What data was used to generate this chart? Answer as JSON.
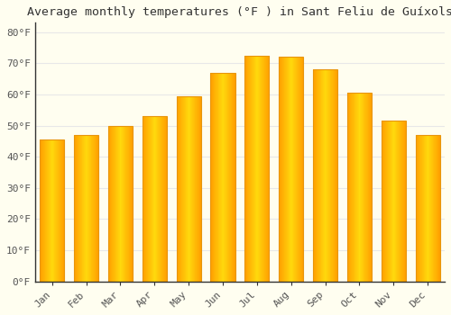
{
  "months": [
    "Jan",
    "Feb",
    "Mar",
    "Apr",
    "May",
    "Jun",
    "Jul",
    "Aug",
    "Sep",
    "Oct",
    "Nov",
    "Dec"
  ],
  "values": [
    45.5,
    47.0,
    50.0,
    53.0,
    59.5,
    67.0,
    72.5,
    72.0,
    68.0,
    60.5,
    51.5,
    47.0
  ],
  "title": "Average monthly temperatures (°F ) in Sant Feliu de Guíxols",
  "ylim": [
    0,
    83
  ],
  "yticks": [
    0,
    10,
    20,
    30,
    40,
    50,
    60,
    70,
    80
  ],
  "ytick_labels": [
    "0°F",
    "10°F",
    "20°F",
    "30°F",
    "40°F",
    "50°F",
    "60°F",
    "70°F",
    "80°F"
  ],
  "bg_color": "#FFFEF0",
  "grid_color": "#E8E8E8",
  "bar_edge_color": "#E8950A",
  "title_fontsize": 9.5,
  "tick_fontsize": 8
}
